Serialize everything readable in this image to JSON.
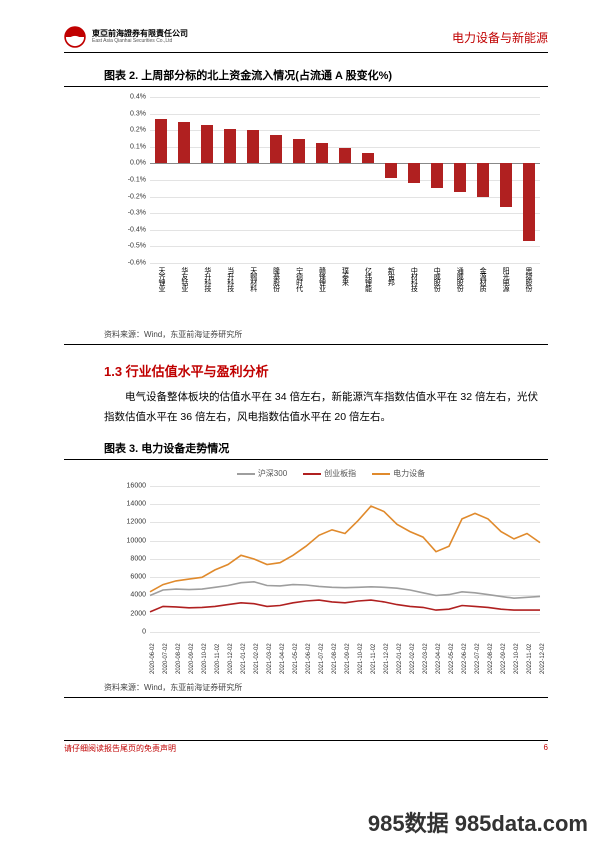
{
  "header": {
    "company_cn": "東亞前海證券有限責任公司",
    "company_en": "East Asia Qianhai Securities Co.,Ltd",
    "category": "电力设备与新能源"
  },
  "fig2": {
    "title": "图表 2.   上周部分标的北上资金流入情况(占流通 A 股变化%)",
    "source": "资料来源：Wind，东亚前海证券研究所",
    "type": "bar",
    "ylim": [
      -0.6,
      0.4
    ],
    "ytick_step": 0.1,
    "yticks": [
      "0.4%",
      "0.3%",
      "0.2%",
      "0.1%",
      "0.0%",
      "-0.1%",
      "-0.2%",
      "-0.3%",
      "-0.4%",
      "-0.5%",
      "-0.6%"
    ],
    "bar_color": "#b02020",
    "grid_color": "#e3e3e3",
    "categories": [
      "天齐锂业",
      "华友钴业",
      "华升科技",
      "当升科技",
      "天赐材料",
      "隆基股份",
      "宁德时代",
      "赣锋锂业",
      "璞泰来",
      "亿纬锂能",
      "新宙邦",
      "中材科技",
      "中威股份",
      "通威股份",
      "金源材质",
      "阳光电源",
      "思捷股份"
    ],
    "values": [
      0.27,
      0.25,
      0.23,
      0.21,
      0.2,
      0.17,
      0.15,
      0.12,
      0.09,
      0.06,
      -0.09,
      -0.12,
      -0.15,
      -0.17,
      -0.2,
      -0.26,
      -0.47
    ]
  },
  "section": {
    "title": "1.3 行业估值水平与盈利分析",
    "body": "电气设备整体板块的估值水平在 34 倍左右，新能源汽车指数估值水平在 32 倍左右，光伏指数估值水平在 36 倍左右，风电指数估值水平在 20 倍左右。"
  },
  "fig3": {
    "title": "图表 3.   电力设备走势情况",
    "source": "资料来源：Wind，东亚前海证券研究所",
    "type": "line",
    "ylim": [
      0,
      16000
    ],
    "ytick_step": 2000,
    "yticks": [
      "16000",
      "14000",
      "12000",
      "10000",
      "8000",
      "6000",
      "4000",
      "2000",
      "0"
    ],
    "grid_color": "#e3e3e3",
    "legend": [
      {
        "label": "沪深300",
        "color": "#9e9e9e"
      },
      {
        "label": "创业板指",
        "color": "#b02020"
      },
      {
        "label": "电力设备",
        "color": "#e08a2c"
      }
    ],
    "x_dates": [
      "2020-06-02",
      "2020-07-02",
      "2020-08-02",
      "2020-09-02",
      "2020-10-02",
      "2020-11-02",
      "2020-12-02",
      "2021-01-02",
      "2021-02-02",
      "2021-03-02",
      "2021-04-02",
      "2021-05-02",
      "2021-06-02",
      "2021-07-02",
      "2021-08-02",
      "2021-09-02",
      "2021-10-02",
      "2021-11-02",
      "2021-12-02",
      "2022-01-02",
      "2022-02-02",
      "2022-03-02",
      "2022-04-02",
      "2022-05-02",
      "2022-06-02",
      "2022-07-02",
      "2022-08-02",
      "2022-09-02",
      "2022-10-02",
      "2022-11-02",
      "2022-12-02"
    ],
    "series": {
      "hs300": [
        4000,
        4600,
        4700,
        4650,
        4700,
        4900,
        5100,
        5400,
        5500,
        5100,
        5050,
        5200,
        5150,
        5000,
        4900,
        4850,
        4900,
        4950,
        4900,
        4800,
        4600,
        4300,
        4000,
        4100,
        4400,
        4300,
        4100,
        3900,
        3700,
        3800,
        3900
      ],
      "cyb": [
        2200,
        2800,
        2750,
        2650,
        2700,
        2800,
        3000,
        3200,
        3100,
        2800,
        2900,
        3200,
        3400,
        3500,
        3300,
        3200,
        3400,
        3500,
        3300,
        3000,
        2800,
        2700,
        2400,
        2500,
        2900,
        2800,
        2700,
        2500,
        2400,
        2400,
        2400
      ],
      "dlsb": [
        4400,
        5200,
        5600,
        5800,
        6000,
        6800,
        7400,
        8400,
        8000,
        7400,
        7600,
        8400,
        9400,
        10600,
        11200,
        10800,
        12200,
        13800,
        13200,
        11800,
        11000,
        10400,
        8800,
        9400,
        12400,
        13000,
        12400,
        11000,
        10200,
        10800,
        9800
      ]
    }
  },
  "footer": {
    "disclaimer": "请仔细阅读报告尾页的免责声明",
    "page": "6"
  },
  "watermark": "985数据 985data.com"
}
